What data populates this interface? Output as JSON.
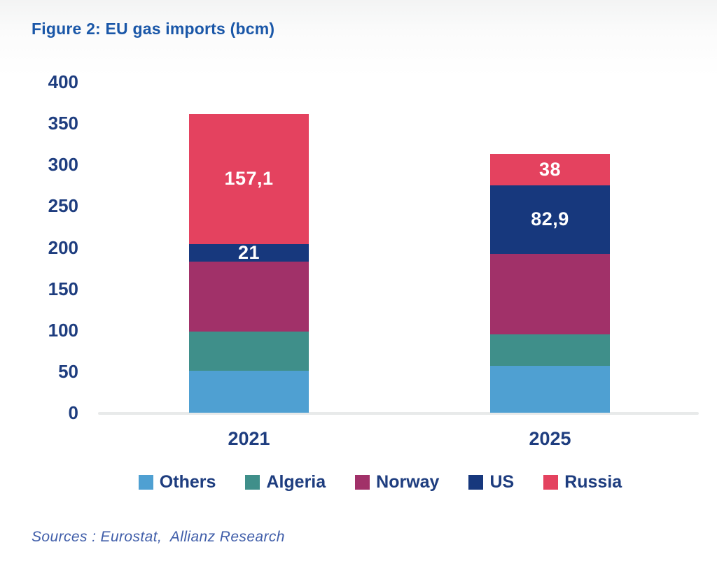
{
  "footer": {
    "sources": "Sources : Eurostat,  Allianz Research"
  },
  "colors": {
    "title_text": "#1A57A8",
    "axis_text": "#1E3D7F",
    "sources_text": "#3F5DA9",
    "baseline": "#E8EAEA"
  },
  "chart_data": {
    "type": "bar",
    "stacked": true,
    "title": "Figure 2: EU gas imports (bcm)",
    "categories": [
      "2021",
      "2025"
    ],
    "series": [
      {
        "name": "Others",
        "color": "#4FA0D2",
        "values": [
          51,
          57
        ],
        "labels": [
          "",
          ""
        ]
      },
      {
        "name": "Algeria",
        "color": "#3F8F8A",
        "values": [
          47,
          38
        ],
        "labels": [
          "",
          ""
        ]
      },
      {
        "name": "Norway",
        "color": "#A13169",
        "values": [
          85,
          97
        ],
        "labels": [
          "",
          ""
        ]
      },
      {
        "name": "US",
        "color": "#17387D",
        "values": [
          21,
          82.9
        ],
        "labels": [
          "21",
          "82,9"
        ]
      },
      {
        "name": "Russia",
        "color": "#E4425F",
        "values": [
          157.1,
          38
        ],
        "labels": [
          "157,1",
          "38"
        ]
      }
    ],
    "totals": [
      361.1,
      312.9
    ],
    "yticks": [
      400,
      350,
      300,
      250,
      200,
      150,
      100,
      50,
      0
    ],
    "ylim": [
      0,
      400
    ],
    "grid": false,
    "legend_position": "bottom"
  }
}
